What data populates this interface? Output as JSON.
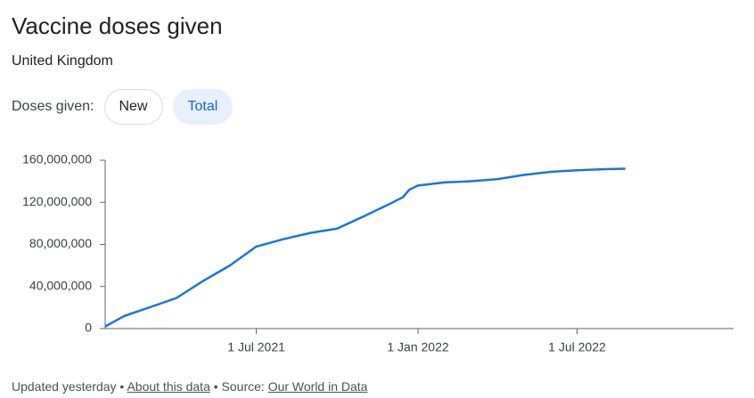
{
  "header": {
    "title": "Vaccine doses given",
    "subtitle": "United Kingdom",
    "toggle_label": "Doses given:",
    "toggle_options": [
      "New",
      "Total"
    ]
  },
  "chart_data": {
    "type": "line",
    "color": "#1a73e8",
    "x": [
      "2021-01-10",
      "2021-02-01",
      "2021-03-01",
      "2021-04-01",
      "2021-05-01",
      "2021-06-01",
      "2021-07-01",
      "2021-08-01",
      "2021-09-01",
      "2021-10-01",
      "2021-11-01",
      "2021-12-01",
      "2021-12-15",
      "2021-12-22",
      "2022-01-01",
      "2022-02-01",
      "2022-03-01",
      "2022-04-01",
      "2022-05-01",
      "2022-06-01",
      "2022-07-01",
      "2022-08-01",
      "2022-08-25"
    ],
    "series": [
      {
        "name": "Total",
        "color": "#1a73e8",
        "values": [
          2000000,
          12000000,
          20000000,
          29000000,
          45000000,
          60000000,
          78000000,
          85000000,
          91000000,
          95000000,
          107000000,
          119000000,
          125000000,
          132000000,
          136000000,
          139000000,
          140000000,
          142000000,
          146000000,
          149000000,
          150500000,
          151500000,
          152000000
        ]
      }
    ],
    "xlim": [
      "2021-01-10",
      "2022-12-26"
    ],
    "xticks": [
      {
        "value": "2021-07-01",
        "label": "1 Jul 2021"
      },
      {
        "value": "2022-01-01",
        "label": "1 Jan 2022"
      },
      {
        "value": "2022-07-01",
        "label": "1 Jul 2022"
      }
    ],
    "ylim": [
      0,
      160000000
    ],
    "yticks": [
      0,
      {
        "value": 40000000,
        "label": "40,000,000"
      },
      {
        "value": 80000000,
        "label": "80,000,000"
      },
      {
        "value": 120000000,
        "label": "120,000,000"
      },
      {
        "value": 160000000,
        "label": "160,000,000"
      }
    ]
  },
  "footer": {
    "updated": "Updated yesterday",
    "about": "About this data",
    "source_label": "Source:",
    "source": "Our World in Data"
  }
}
